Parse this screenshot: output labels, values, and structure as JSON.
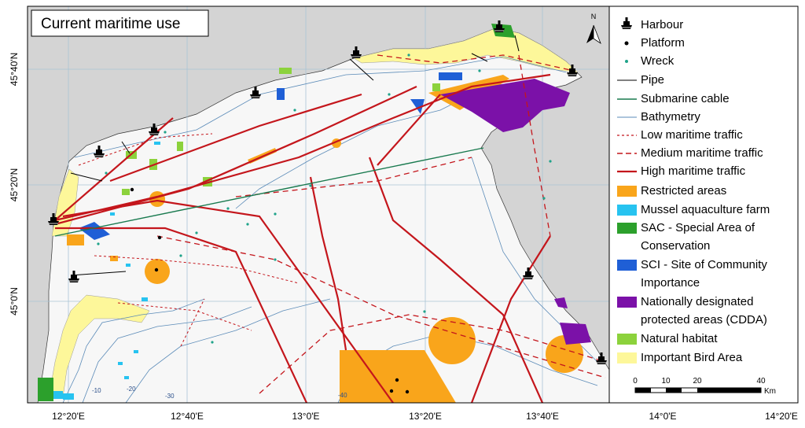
{
  "title": "Current maritime use",
  "north_label": "N",
  "legend": [
    {
      "lines": [
        "Harbour"
      ]
    },
    {
      "lines": [
        "Platform"
      ]
    },
    {
      "lines": [
        "Wreck"
      ]
    },
    {
      "lines": [
        "Pipe"
      ]
    },
    {
      "lines": [
        "Submarine cable"
      ]
    },
    {
      "lines": [
        "Bathymetry"
      ]
    },
    {
      "lines": [
        "Low maritime traffic"
      ]
    },
    {
      "lines": [
        "Medium maritime traffic"
      ]
    },
    {
      "lines": [
        "High maritime traffic"
      ]
    },
    {
      "lines": [
        "Restricted areas"
      ]
    },
    {
      "lines": [
        "Mussel aquaculture farm"
      ]
    },
    {
      "lines": [
        "SAC - Special Area of",
        "Conservation"
      ]
    },
    {
      "lines": [
        "SCI - Site of Community",
        "Importance"
      ]
    },
    {
      "lines": [
        "Nationally designated",
        "protected areas (CDDA)"
      ]
    },
    {
      "lines": [
        "Natural habitat"
      ]
    },
    {
      "lines": [
        "Important Bird Area"
      ]
    }
  ],
  "longitude_labels": [
    "12°20'E",
    "12°40'E",
    "13°0'E",
    "13°20'E",
    "13°40'E",
    "14°0'E",
    "14°20'E"
  ],
  "latitude_labels": [
    "45°40'N",
    "45°20'N",
    "45°0'N"
  ],
  "depth_labels": [
    "-10",
    "-20",
    "-30",
    "-40"
  ],
  "scale_bar": {
    "labels": [
      "0",
      "10",
      "20",
      "40"
    ],
    "unit": "Km"
  }
}
